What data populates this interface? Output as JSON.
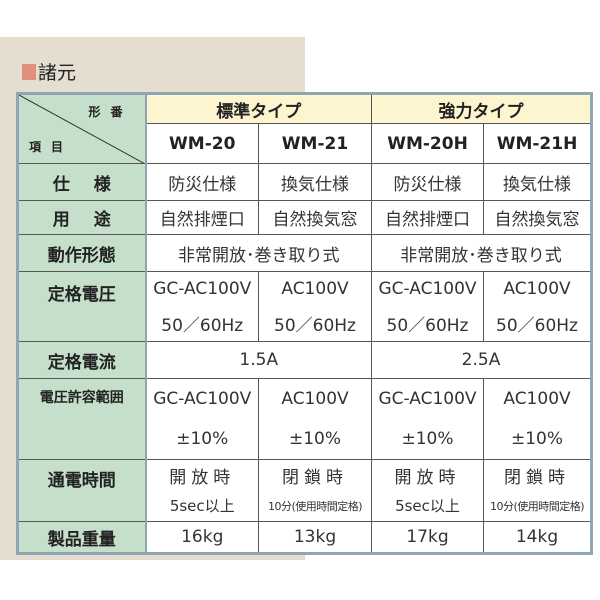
{
  "section_title": "諸元",
  "corner": {
    "top": "形番",
    "bottom": "項目"
  },
  "groups": [
    "標準タイプ",
    "強力タイプ"
  ],
  "models": [
    "WM-20",
    "WM-21",
    "WM-20H",
    "WM-21H"
  ],
  "rows": {
    "spec": {
      "label": "仕様",
      "values": [
        "防災仕様",
        "換気仕様",
        "防災仕様",
        "換気仕様"
      ]
    },
    "use": {
      "label": "用途",
      "values": [
        "自然排煙口",
        "自然換気窓",
        "自然排煙口",
        "自然換気窓"
      ]
    },
    "operation": {
      "label": "動作形態",
      "values": [
        "非常開放･巻き取り式",
        "非常開放･巻き取り式"
      ]
    },
    "voltage": {
      "label": "定格電圧",
      "line1": [
        "GC-AC100V",
        "AC100V",
        "GC-AC100V",
        "AC100V"
      ],
      "line2": [
        "50／60Hz",
        "50／60Hz",
        "50／60Hz",
        "50／60Hz"
      ]
    },
    "current": {
      "label": "定格電流",
      "values": [
        "1.5A",
        "2.5A"
      ]
    },
    "tolerance": {
      "label": "電圧許容範囲",
      "line1": [
        "GC-AC100V",
        "AC100V",
        "GC-AC100V",
        "AC100V"
      ],
      "line2": [
        "±10%",
        "±10%",
        "±10%",
        "±10%"
      ]
    },
    "energize": {
      "label": "通電時間",
      "line1": [
        "開放時",
        "閉鎖時",
        "開放時",
        "閉鎖時"
      ],
      "line2": [
        "5sec以上",
        "10分(使用時間定格)",
        "5sec以上",
        "10分(使用時間定格)"
      ]
    },
    "weight": {
      "label": "製品重量",
      "values": [
        "16kg",
        "13kg",
        "17kg",
        "14kg"
      ]
    }
  },
  "colors": {
    "label_bg": "#c6dfcb",
    "header_bg": "#fcf5cf",
    "panel_bg": "#e4ddd0",
    "border": "#8ea6b2",
    "title_marker": "#e0907a"
  }
}
